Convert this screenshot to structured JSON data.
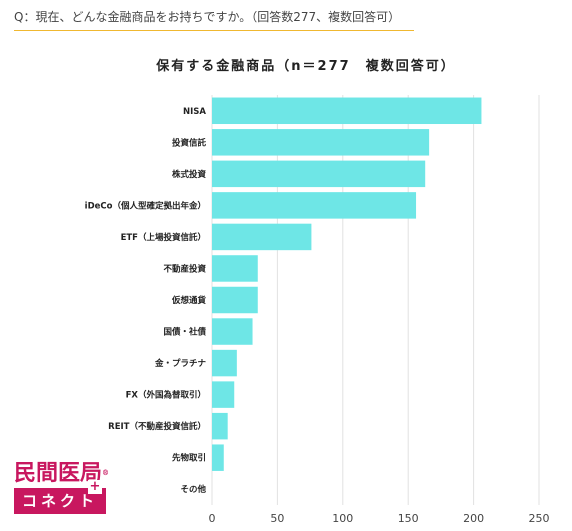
{
  "question": "Q：現在、どんな金融商品をお持ちですか。（回答数277、複数回答可）",
  "logo": {
    "top": "民間医局",
    "reg": "®",
    "bottom": "コネクト"
  },
  "chart_data": {
    "type": "bar",
    "orientation": "horizontal",
    "title": "保有する金融商品（n＝277　複数回答可）",
    "categories": [
      "NISA",
      "投資信託",
      "株式投資",
      "iDeCo（個人型確定拠出年金）",
      "ETF（上場投資信託）",
      "不動産投資",
      "仮想通貨",
      "国債・社債",
      "金・プラチナ",
      "FX（外国為替取引）",
      "REIT（不動産投資信託）",
      "先物取引",
      "その他"
    ],
    "values": [
      206,
      166,
      163,
      156,
      76,
      35,
      35,
      31,
      19,
      17,
      12,
      9,
      0
    ],
    "xlim": [
      0,
      250
    ],
    "xticks": [
      "0",
      "50",
      "100",
      "150",
      "200",
      "250"
    ],
    "grid": true,
    "bar_color": "#6ee6e6"
  }
}
